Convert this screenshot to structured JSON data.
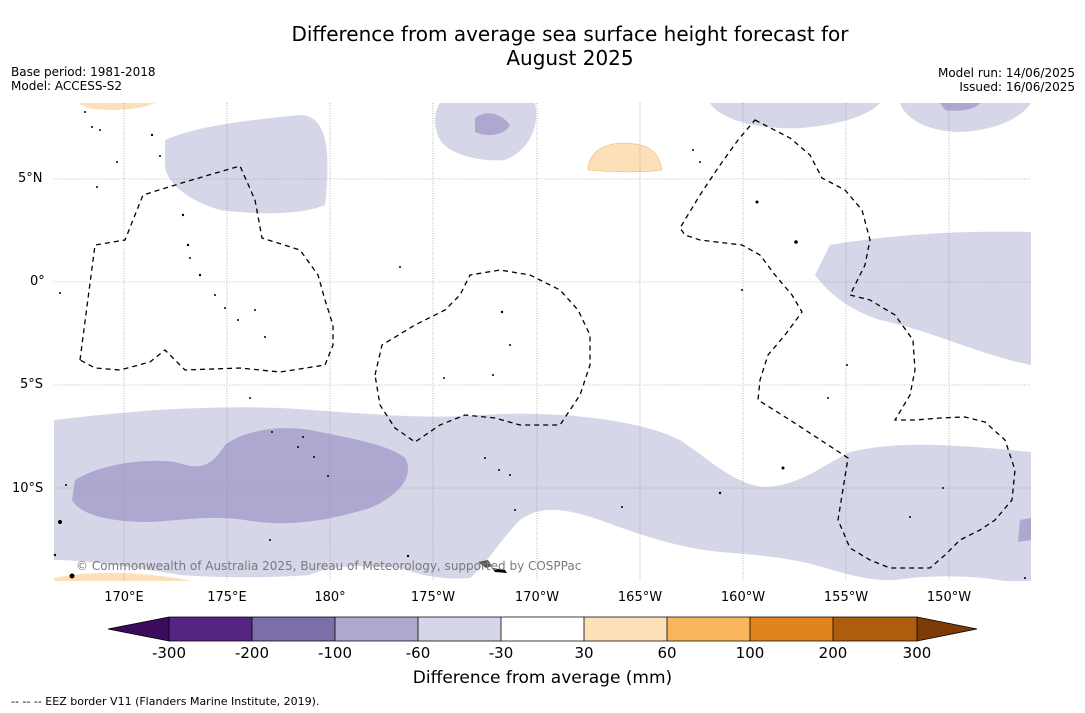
{
  "title_line1": "Difference from average sea surface height forecast for",
  "title_line2": "August 2025",
  "meta_left": {
    "base_period": "Base period: 1981-2018",
    "model": "Model: ACCESS-S2"
  },
  "meta_right": {
    "model_run": "Model run: 14/06/2025",
    "issued": "Issued: 16/06/2025"
  },
  "lat_labels": [
    "5°N",
    "0°",
    "5°S",
    "10°S"
  ],
  "lon_labels": [
    "170°E",
    "175°E",
    "180°",
    "175°W",
    "170°W",
    "165°W",
    "160°W",
    "155°W",
    "150°W"
  ],
  "copyright": "© Commonwealth of Australia 2025, Bureau of Meteorology, supported by COSPPac",
  "colorbar": {
    "labels": [
      "-300",
      "-200",
      "-100",
      "-60",
      "-30",
      "30",
      "60",
      "100",
      "200",
      "300"
    ],
    "colors": [
      "#3c0b5e",
      "#552583",
      "#7b6ea9",
      "#aea8d1",
      "#d6d6e9",
      "#ffffff",
      "#fde0b7",
      "#f9b55c",
      "#e0851b",
      "#b05c0e",
      "#7c3b07"
    ],
    "title": "Difference from average (mm)"
  },
  "footer": "--  --  -- EEZ border V11 (Flanders Marine Institute, 2019)."
}
